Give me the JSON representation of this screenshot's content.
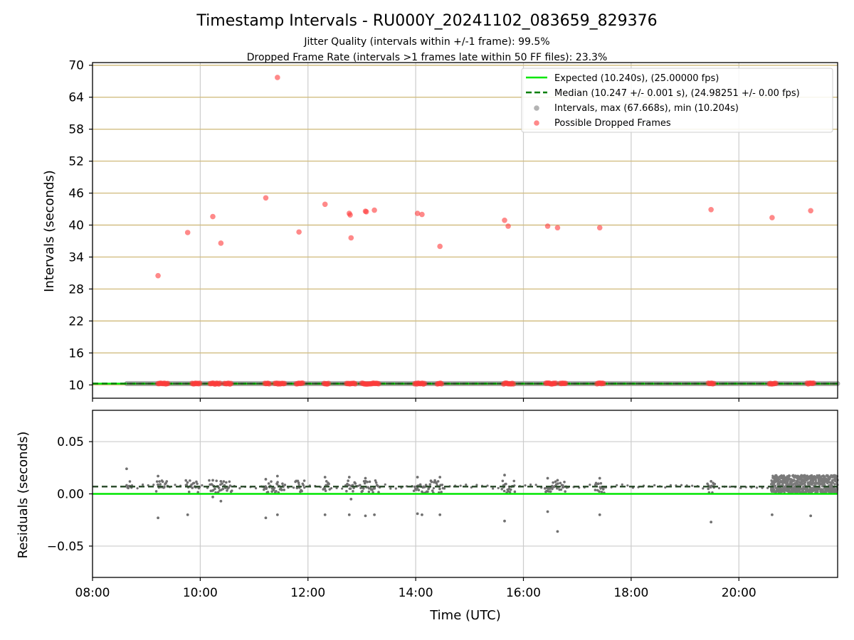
{
  "chart_data": [
    {
      "type": "scatter",
      "title": "Timestamp Intervals - RU000Y_20241102_083659_829376",
      "subtitles": [
        "Jitter Quality (intervals within +/-1 frame): 99.5%",
        "Dropped Frame Rate (intervals >1 frames late within 50 FF files): 23.3%"
      ],
      "ylabel": "Intervals (seconds)",
      "xlim": [
        "08:00",
        "21:50"
      ],
      "ylim": [
        7.5,
        70.5
      ],
      "yticks": [
        10,
        16,
        22,
        28,
        34,
        40,
        46,
        52,
        58,
        64,
        70
      ],
      "grid": true,
      "legend_position": "upper right",
      "legend": [
        {
          "label": "Expected (10.240s), (25.00000 fps)",
          "kind": "line",
          "color": "#00e600"
        },
        {
          "label": "Median (10.247 +/- 0.001 s), (24.98251 +/- 0.00 fps)",
          "kind": "dashed",
          "color": "#007f00"
        },
        {
          "label": "Intervals, max (67.668s), min (10.204s)",
          "kind": "dot",
          "color": "#808080"
        },
        {
          "label": "Possible Dropped Frames",
          "kind": "dot",
          "color": "#ff3b3b"
        }
      ],
      "expected": 10.24,
      "median": 10.247,
      "interval_range": [
        "08:38",
        "21:50"
      ],
      "series": [
        {
          "name": "Possible Dropped Frames",
          "points": [
            {
              "x": "09:13",
              "y": 30.5
            },
            {
              "x": "09:46",
              "y": 38.6
            },
            {
              "x": "10:14",
              "y": 41.6
            },
            {
              "x": "10:23",
              "y": 36.6
            },
            {
              "x": "11:13",
              "y": 45.1
            },
            {
              "x": "11:26",
              "y": 67.7
            },
            {
              "x": "11:50",
              "y": 38.7
            },
            {
              "x": "12:19",
              "y": 43.9
            },
            {
              "x": "12:46",
              "y": 42.2
            },
            {
              "x": "12:47",
              "y": 41.9
            },
            {
              "x": "12:48",
              "y": 37.6
            },
            {
              "x": "13:04",
              "y": 42.6
            },
            {
              "x": "13:05",
              "y": 42.5
            },
            {
              "x": "13:14",
              "y": 42.8
            },
            {
              "x": "14:02",
              "y": 42.2
            },
            {
              "x": "14:07",
              "y": 42.0
            },
            {
              "x": "14:27",
              "y": 36.0
            },
            {
              "x": "15:39",
              "y": 40.9
            },
            {
              "x": "15:43",
              "y": 39.8
            },
            {
              "x": "16:27",
              "y": 39.8
            },
            {
              "x": "16:38",
              "y": 39.5
            },
            {
              "x": "17:25",
              "y": 39.5
            },
            {
              "x": "19:29",
              "y": 42.9
            },
            {
              "x": "20:37",
              "y": 41.4
            },
            {
              "x": "21:20",
              "y": 42.7
            }
          ],
          "low_clusters": [
            [
              "09:13",
              "09:24"
            ],
            [
              "09:51",
              "10:00"
            ],
            [
              "10:11",
              "10:22"
            ],
            [
              "10:27",
              "10:35"
            ],
            [
              "11:12",
              "11:18"
            ],
            [
              "11:23",
              "11:34"
            ],
            [
              "11:47",
              "11:55"
            ],
            [
              "12:18",
              "12:24"
            ],
            [
              "12:43",
              "12:53"
            ],
            [
              "13:00",
              "13:08"
            ],
            [
              "13:09",
              "13:19"
            ],
            [
              "13:59",
              "14:11"
            ],
            [
              "14:24",
              "14:30"
            ],
            [
              "15:38",
              "15:50"
            ],
            [
              "16:25",
              "16:37"
            ],
            [
              "16:41",
              "16:48"
            ],
            [
              "17:22",
              "17:30"
            ],
            [
              "19:26",
              "19:33"
            ],
            [
              "20:34",
              "20:42"
            ],
            [
              "21:16",
              "21:24"
            ]
          ]
        }
      ]
    },
    {
      "type": "scatter",
      "xlabel": "Time (UTC)",
      "ylabel": "Residuals (seconds)",
      "xlim": [
        "08:00",
        "21:50"
      ],
      "ylim": [
        -0.08,
        0.08
      ],
      "yticks": [
        0.05,
        0.0,
        -0.05
      ],
      "ytick_labels": [
        "0.05",
        "0.00",
        "−0.05"
      ],
      "xticks": [
        "08:00",
        "10:00",
        "12:00",
        "14:00",
        "16:00",
        "18:00",
        "20:00"
      ],
      "grid": true,
      "expected": 0.0,
      "median": 0.007,
      "series": [
        {
          "name": "Intervals",
          "points": [
            {
              "x": "08:38",
              "y": 0.024
            },
            {
              "x": "09:13",
              "y": 0.017
            },
            {
              "x": "09:13",
              "y": -0.023
            },
            {
              "x": "09:46",
              "y": -0.02
            },
            {
              "x": "10:14",
              "y": 0.013
            },
            {
              "x": "10:14",
              "y": -0.003
            },
            {
              "x": "10:23",
              "y": 0.012
            },
            {
              "x": "10:23",
              "y": -0.007
            },
            {
              "x": "11:13",
              "y": 0.014
            },
            {
              "x": "11:13",
              "y": -0.023
            },
            {
              "x": "11:26",
              "y": 0.017
            },
            {
              "x": "11:26",
              "y": -0.02
            },
            {
              "x": "12:19",
              "y": 0.016
            },
            {
              "x": "12:19",
              "y": -0.02
            },
            {
              "x": "12:46",
              "y": 0.016
            },
            {
              "x": "12:46",
              "y": -0.02
            },
            {
              "x": "12:48",
              "y": -0.005
            },
            {
              "x": "13:04",
              "y": 0.015
            },
            {
              "x": "13:04",
              "y": -0.021
            },
            {
              "x": "13:14",
              "y": -0.02
            },
            {
              "x": "14:02",
              "y": 0.016
            },
            {
              "x": "14:02",
              "y": -0.019
            },
            {
              "x": "14:07",
              "y": -0.02
            },
            {
              "x": "14:27",
              "y": 0.016
            },
            {
              "x": "14:27",
              "y": -0.02
            },
            {
              "x": "15:39",
              "y": 0.018
            },
            {
              "x": "15:39",
              "y": -0.026
            },
            {
              "x": "16:27",
              "y": 0.015
            },
            {
              "x": "16:27",
              "y": -0.017
            },
            {
              "x": "16:38",
              "y": 0.013
            },
            {
              "x": "16:38",
              "y": -0.036
            },
            {
              "x": "17:25",
              "y": 0.015
            },
            {
              "x": "17:25",
              "y": -0.02
            },
            {
              "x": "19:29",
              "y": 0.012
            },
            {
              "x": "19:29",
              "y": -0.027
            },
            {
              "x": "20:37",
              "y": -0.02
            },
            {
              "x": "21:20",
              "y": -0.021
            }
          ],
          "clusters": [
            [
              "08:38",
              "08:44"
            ],
            [
              "09:11",
              "09:24"
            ],
            [
              "09:44",
              "10:00"
            ],
            [
              "10:10",
              "10:36"
            ],
            [
              "11:10",
              "11:35"
            ],
            [
              "11:46",
              "11:56"
            ],
            [
              "12:17",
              "12:25"
            ],
            [
              "12:42",
              "12:55"
            ],
            [
              "12:58",
              "13:20"
            ],
            [
              "13:58",
              "14:31"
            ],
            [
              "15:36",
              "15:51"
            ],
            [
              "16:24",
              "16:49"
            ],
            [
              "17:20",
              "17:31"
            ],
            [
              "19:25",
              "19:34"
            ]
          ],
          "dense_band": [
            "20:36",
            "21:50"
          ]
        }
      ]
    }
  ]
}
